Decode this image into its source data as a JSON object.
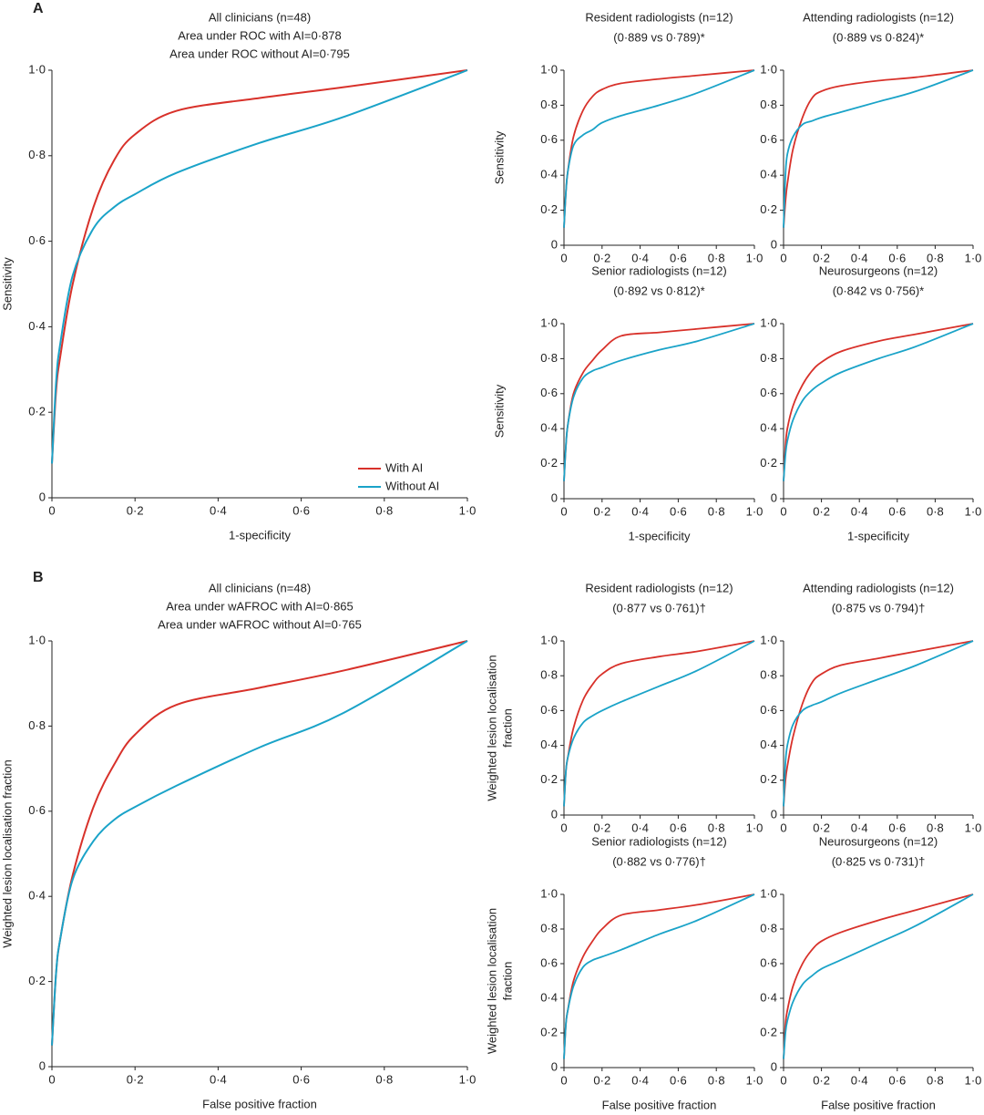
{
  "panels": [
    "A",
    "B"
  ],
  "chart_data": [
    {
      "type": "line",
      "title": "All clinicians (n=48)",
      "subtitle": [
        "Area under ROC with AI=0·878",
        "Area under ROC without AI=0·795"
      ],
      "xlabel": "1-specificity",
      "ylabel": "Sensitivity",
      "legend": "lower right",
      "x": [
        0,
        0.01,
        0.02,
        0.05,
        0.1,
        0.15,
        0.2,
        0.3,
        0.5,
        0.7,
        1
      ],
      "series": [
        {
          "name": "With AI",
          "color": "#d8312a",
          "values": [
            0.08,
            0.25,
            0.33,
            0.5,
            0.68,
            0.79,
            0.85,
            0.905,
            0.935,
            0.96,
            1
          ]
        },
        {
          "name": "Without AI",
          "color": "#1aa3c8",
          "values": [
            0.08,
            0.27,
            0.36,
            0.52,
            0.63,
            0.68,
            0.71,
            0.76,
            0.83,
            0.89,
            1
          ]
        }
      ],
      "xlim": [
        0,
        1
      ],
      "ylim": [
        0,
        1
      ],
      "xticks": [
        0,
        {
          "value": 0.2,
          "label": "0·2"
        },
        {
          "value": 0.4,
          "label": "0·4"
        },
        {
          "value": 0.6,
          "label": "0·6"
        },
        {
          "value": 0.8,
          "label": "0·8"
        },
        {
          "value": 1,
          "label": "1·0"
        }
      ],
      "yticks": [
        0,
        {
          "value": 0.2,
          "label": "0·2"
        },
        {
          "value": 0.4,
          "label": "0·4"
        },
        {
          "value": 0.6,
          "label": "0·6"
        },
        {
          "value": 0.8,
          "label": "0·8"
        },
        {
          "value": 1,
          "label": "1·0"
        }
      ]
    },
    {
      "type": "line",
      "title": "Resident radiologists (n=12)",
      "subtitle": [
        "(0·889 vs 0·789)*"
      ],
      "ylabel": "Sensitivity",
      "x": [
        0,
        0.01,
        0.02,
        0.05,
        0.1,
        0.15,
        0.2,
        0.3,
        0.5,
        0.7,
        1
      ],
      "series": [
        {
          "color": "#d8312a",
          "values": [
            0.1,
            0.3,
            0.42,
            0.62,
            0.77,
            0.85,
            0.89,
            0.925,
            0.95,
            0.97,
            1
          ]
        },
        {
          "color": "#1aa3c8",
          "values": [
            0.1,
            0.3,
            0.42,
            0.57,
            0.63,
            0.66,
            0.7,
            0.74,
            0.8,
            0.87,
            1
          ]
        }
      ],
      "xlim": [
        0,
        1
      ],
      "ylim": [
        0,
        1
      ],
      "xticks": [
        0,
        {
          "value": 0.2,
          "label": "0·2"
        },
        {
          "value": 0.4,
          "label": "0·4"
        },
        {
          "value": 0.6,
          "label": "0·6"
        },
        {
          "value": 0.8,
          "label": "0·8"
        },
        {
          "value": 1,
          "label": "1·0"
        }
      ],
      "yticks": [
        0,
        {
          "value": 0.2,
          "label": "0·2"
        },
        {
          "value": 0.4,
          "label": "0·4"
        },
        {
          "value": 0.6,
          "label": "0·6"
        },
        {
          "value": 0.8,
          "label": "0·8"
        },
        {
          "value": 1,
          "label": "1·0"
        }
      ]
    },
    {
      "type": "line",
      "title": "Attending radiologists (n=12)",
      "subtitle": [
        "(0·889 vs 0·824)*"
      ],
      "x": [
        0,
        0.01,
        0.02,
        0.05,
        0.1,
        0.15,
        0.2,
        0.3,
        0.5,
        0.7,
        1
      ],
      "series": [
        {
          "color": "#d8312a",
          "values": [
            0.1,
            0.25,
            0.35,
            0.55,
            0.73,
            0.84,
            0.88,
            0.91,
            0.94,
            0.96,
            1
          ]
        },
        {
          "color": "#1aa3c8",
          "values": [
            0.1,
            0.4,
            0.52,
            0.62,
            0.69,
            0.71,
            0.73,
            0.76,
            0.82,
            0.88,
            1
          ]
        }
      ],
      "xlim": [
        0,
        1
      ],
      "ylim": [
        0,
        1
      ],
      "xticks": [
        0,
        {
          "value": 0.2,
          "label": "0·2"
        },
        {
          "value": 0.4,
          "label": "0·4"
        },
        {
          "value": 0.6,
          "label": "0·6"
        },
        {
          "value": 0.8,
          "label": "0·8"
        },
        {
          "value": 1,
          "label": "1·0"
        }
      ],
      "yticks": [
        0,
        {
          "value": 0.2,
          "label": "0·2"
        },
        {
          "value": 0.4,
          "label": "0·4"
        },
        {
          "value": 0.6,
          "label": "0·6"
        },
        {
          "value": 0.8,
          "label": "0·8"
        },
        {
          "value": 1,
          "label": "1·0"
        }
      ]
    },
    {
      "type": "line",
      "title": "Senior radiologists (n=12)",
      "subtitle": [
        "(0·892 vs 0·812)*"
      ],
      "xlabel": "1-specificity",
      "ylabel": "Sensitivity",
      "x": [
        0,
        0.01,
        0.02,
        0.05,
        0.1,
        0.15,
        0.2,
        0.3,
        0.5,
        0.7,
        1
      ],
      "series": [
        {
          "color": "#d8312a",
          "values": [
            0.1,
            0.3,
            0.42,
            0.6,
            0.72,
            0.79,
            0.85,
            0.93,
            0.95,
            0.97,
            1
          ]
        },
        {
          "color": "#1aa3c8",
          "values": [
            0.1,
            0.3,
            0.42,
            0.58,
            0.69,
            0.73,
            0.75,
            0.79,
            0.85,
            0.9,
            1
          ]
        }
      ],
      "xlim": [
        0,
        1
      ],
      "ylim": [
        0,
        1
      ],
      "xticks": [
        0,
        {
          "value": 0.2,
          "label": "0·2"
        },
        {
          "value": 0.4,
          "label": "0·4"
        },
        {
          "value": 0.6,
          "label": "0·6"
        },
        {
          "value": 0.8,
          "label": "0·8"
        },
        {
          "value": 1,
          "label": "1·0"
        }
      ],
      "yticks": [
        0,
        {
          "value": 0.2,
          "label": "0·2"
        },
        {
          "value": 0.4,
          "label": "0·4"
        },
        {
          "value": 0.6,
          "label": "0·6"
        },
        {
          "value": 0.8,
          "label": "0·8"
        },
        {
          "value": 1,
          "label": "1·0"
        }
      ]
    },
    {
      "type": "line",
      "title": "Neurosurgeons (n=12)",
      "subtitle": [
        "(0·842 vs 0·756)*"
      ],
      "xlabel": "1-specificity",
      "x": [
        0,
        0.01,
        0.02,
        0.05,
        0.1,
        0.15,
        0.2,
        0.3,
        0.5,
        0.7,
        1
      ],
      "series": [
        {
          "color": "#d8312a",
          "values": [
            0.1,
            0.3,
            0.4,
            0.53,
            0.65,
            0.73,
            0.78,
            0.84,
            0.9,
            0.94,
            1
          ]
        },
        {
          "color": "#1aa3c8",
          "values": [
            0.1,
            0.25,
            0.33,
            0.45,
            0.56,
            0.62,
            0.66,
            0.72,
            0.8,
            0.87,
            1
          ]
        }
      ],
      "xlim": [
        0,
        1
      ],
      "ylim": [
        0,
        1
      ],
      "xticks": [
        0,
        {
          "value": 0.2,
          "label": "0·2"
        },
        {
          "value": 0.4,
          "label": "0·4"
        },
        {
          "value": 0.6,
          "label": "0·6"
        },
        {
          "value": 0.8,
          "label": "0·8"
        },
        {
          "value": 1,
          "label": "1·0"
        }
      ],
      "yticks": [
        0,
        {
          "value": 0.2,
          "label": "0·2"
        },
        {
          "value": 0.4,
          "label": "0·4"
        },
        {
          "value": 0.6,
          "label": "0·6"
        },
        {
          "value": 0.8,
          "label": "0·8"
        },
        {
          "value": 1,
          "label": "1·0"
        }
      ]
    },
    {
      "type": "line",
      "title": "All clinicians (n=48)",
      "subtitle": [
        "Area under wAFROC with AI=0·865",
        "Area under wAFROC without AI=0·765"
      ],
      "xlabel": "False positive fraction",
      "ylabel": [
        "Weighted lesion localisation fraction"
      ],
      "x": [
        0,
        0.01,
        0.02,
        0.05,
        0.1,
        0.15,
        0.2,
        0.3,
        0.5,
        0.7,
        1
      ],
      "series": [
        {
          "color": "#d8312a",
          "values": [
            0.05,
            0.22,
            0.3,
            0.45,
            0.61,
            0.71,
            0.78,
            0.85,
            0.89,
            0.93,
            1
          ]
        },
        {
          "color": "#1aa3c8",
          "values": [
            0.05,
            0.22,
            0.3,
            0.44,
            0.53,
            0.58,
            0.61,
            0.66,
            0.75,
            0.83,
            1
          ]
        }
      ],
      "xlim": [
        0,
        1
      ],
      "ylim": [
        0,
        1
      ],
      "xticks": [
        0,
        {
          "value": 0.2,
          "label": "0·2"
        },
        {
          "value": 0.4,
          "label": "0·4"
        },
        {
          "value": 0.6,
          "label": "0·6"
        },
        {
          "value": 0.8,
          "label": "0·8"
        },
        {
          "value": 1,
          "label": "1·0"
        }
      ],
      "yticks": [
        0,
        {
          "value": 0.2,
          "label": "0·2"
        },
        {
          "value": 0.4,
          "label": "0·4"
        },
        {
          "value": 0.6,
          "label": "0·6"
        },
        {
          "value": 0.8,
          "label": "0·8"
        },
        {
          "value": 1,
          "label": "1·0"
        }
      ]
    },
    {
      "type": "line",
      "title": "Resident radiologists (n=12)",
      "subtitle": [
        "(0·877 vs 0·761)†"
      ],
      "ylabel": [
        "Weighted lesion localisation",
        "fraction"
      ],
      "x": [
        0,
        0.01,
        0.02,
        0.05,
        0.1,
        0.15,
        0.2,
        0.3,
        0.5,
        0.7,
        1
      ],
      "series": [
        {
          "color": "#d8312a",
          "values": [
            0.05,
            0.25,
            0.33,
            0.5,
            0.66,
            0.75,
            0.81,
            0.87,
            0.91,
            0.94,
            1
          ]
        },
        {
          "color": "#1aa3c8",
          "values": [
            0.05,
            0.25,
            0.33,
            0.44,
            0.53,
            0.57,
            0.6,
            0.65,
            0.74,
            0.83,
            1
          ]
        }
      ],
      "xlim": [
        0,
        1
      ],
      "ylim": [
        0,
        1
      ],
      "xticks": [
        0,
        {
          "value": 0.2,
          "label": "0·2"
        },
        {
          "value": 0.4,
          "label": "0·4"
        },
        {
          "value": 0.6,
          "label": "0·6"
        },
        {
          "value": 0.8,
          "label": "0·8"
        },
        {
          "value": 1,
          "label": "1·0"
        }
      ],
      "yticks": [
        0,
        {
          "value": 0.2,
          "label": "0·2"
        },
        {
          "value": 0.4,
          "label": "0·4"
        },
        {
          "value": 0.6,
          "label": "0·6"
        },
        {
          "value": 0.8,
          "label": "0·8"
        },
        {
          "value": 1,
          "label": "1·0"
        }
      ]
    },
    {
      "type": "line",
      "title": "Attending radiologists (n=12)",
      "subtitle": [
        "(0·875 vs 0·794)†"
      ],
      "x": [
        0,
        0.01,
        0.02,
        0.05,
        0.1,
        0.15,
        0.2,
        0.3,
        0.5,
        0.7,
        1
      ],
      "series": [
        {
          "color": "#d8312a",
          "values": [
            0.05,
            0.2,
            0.28,
            0.45,
            0.64,
            0.76,
            0.81,
            0.86,
            0.9,
            0.94,
            1
          ]
        },
        {
          "color": "#1aa3c8",
          "values": [
            0.05,
            0.3,
            0.4,
            0.52,
            0.6,
            0.63,
            0.65,
            0.7,
            0.78,
            0.86,
            1
          ]
        }
      ],
      "xlim": [
        0,
        1
      ],
      "ylim": [
        0,
        1
      ],
      "xticks": [
        0,
        {
          "value": 0.2,
          "label": "0·2"
        },
        {
          "value": 0.4,
          "label": "0·4"
        },
        {
          "value": 0.6,
          "label": "0·6"
        },
        {
          "value": 0.8,
          "label": "0·8"
        },
        {
          "value": 1,
          "label": "1·0"
        }
      ],
      "yticks": [
        0,
        {
          "value": 0.2,
          "label": "0·2"
        },
        {
          "value": 0.4,
          "label": "0·4"
        },
        {
          "value": 0.6,
          "label": "0·6"
        },
        {
          "value": 0.8,
          "label": "0·8"
        },
        {
          "value": 1,
          "label": "1·0"
        }
      ]
    },
    {
      "type": "line",
      "title": "Senior radiologists (n=12)",
      "subtitle": [
        "(0·882 vs 0·776)†"
      ],
      "xlabel": "False positive fraction",
      "ylabel": [
        "Weighted lesion localisation",
        "fraction"
      ],
      "x": [
        0,
        0.01,
        0.02,
        0.05,
        0.1,
        0.15,
        0.2,
        0.3,
        0.5,
        0.7,
        1
      ],
      "series": [
        {
          "color": "#d8312a",
          "values": [
            0.05,
            0.25,
            0.33,
            0.5,
            0.64,
            0.73,
            0.8,
            0.88,
            0.91,
            0.94,
            1
          ]
        },
        {
          "color": "#1aa3c8",
          "values": [
            0.05,
            0.25,
            0.33,
            0.47,
            0.58,
            0.62,
            0.64,
            0.68,
            0.77,
            0.85,
            1
          ]
        }
      ],
      "xlim": [
        0,
        1
      ],
      "ylim": [
        0,
        1
      ],
      "xticks": [
        0,
        {
          "value": 0.2,
          "label": "0·2"
        },
        {
          "value": 0.4,
          "label": "0·4"
        },
        {
          "value": 0.6,
          "label": "0·6"
        },
        {
          "value": 0.8,
          "label": "0·8"
        },
        {
          "value": 1,
          "label": "1·0"
        }
      ],
      "yticks": [
        0,
        {
          "value": 0.2,
          "label": "0·2"
        },
        {
          "value": 0.4,
          "label": "0·4"
        },
        {
          "value": 0.6,
          "label": "0·6"
        },
        {
          "value": 0.8,
          "label": "0·8"
        },
        {
          "value": 1,
          "label": "1·0"
        }
      ]
    },
    {
      "type": "line",
      "title": "Neurosurgeons (n=12)",
      "subtitle": [
        "(0·825 vs 0·731)†"
      ],
      "xlabel": "False positive fraction",
      "x": [
        0,
        0.01,
        0.02,
        0.05,
        0.1,
        0.15,
        0.2,
        0.3,
        0.5,
        0.7,
        1
      ],
      "series": [
        {
          "color": "#d8312a",
          "values": [
            0.05,
            0.25,
            0.33,
            0.47,
            0.6,
            0.68,
            0.73,
            0.78,
            0.85,
            0.91,
            1
          ]
        },
        {
          "color": "#1aa3c8",
          "values": [
            0.05,
            0.2,
            0.27,
            0.38,
            0.48,
            0.53,
            0.57,
            0.62,
            0.72,
            0.82,
            1
          ]
        }
      ],
      "xlim": [
        0,
        1
      ],
      "ylim": [
        0,
        1
      ],
      "xticks": [
        0,
        {
          "value": 0.2,
          "label": "0·2"
        },
        {
          "value": 0.4,
          "label": "0·4"
        },
        {
          "value": 0.6,
          "label": "0·6"
        },
        {
          "value": 0.8,
          "label": "0·8"
        },
        {
          "value": 1,
          "label": "1·0"
        }
      ],
      "yticks": [
        0,
        {
          "value": 0.2,
          "label": "0·2"
        },
        {
          "value": 0.4,
          "label": "0·4"
        },
        {
          "value": 0.6,
          "label": "0·6"
        },
        {
          "value": 0.8,
          "label": "0·8"
        },
        {
          "value": 1,
          "label": "1·0"
        }
      ]
    }
  ]
}
